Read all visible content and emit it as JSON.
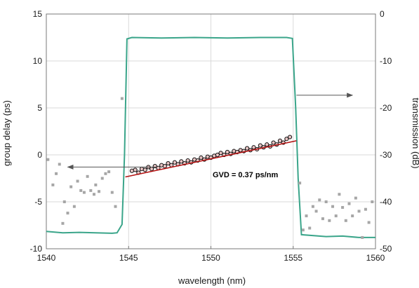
{
  "chart_data": {
    "type": "scatter",
    "title": "",
    "xlabel": "wavelength (nm)",
    "ylabel_left": "group delay (ps)",
    "ylabel_right": "transmission (dB)",
    "xlim": [
      1540,
      1560
    ],
    "ylim_left": [
      -10,
      15
    ],
    "ylim_right": [
      -50,
      0
    ],
    "x_ticks": [
      "1540",
      "1545",
      "1550",
      "1555",
      "1560"
    ],
    "y_left_ticks": [
      "-10",
      "-5",
      "0",
      "5",
      "10",
      "15"
    ],
    "y_right_ticks": [
      "-50",
      "-40",
      "-30",
      "-20",
      "-10",
      "0"
    ],
    "grid": true,
    "annotation": "GVD = 0.37 ps/nm",
    "colors": {
      "transmission": "#3aa58a",
      "fit": "#b31212",
      "measured_in_band": "#111111",
      "measured_out_of_band": "#a6a6a6",
      "arrow": "#555555"
    },
    "series": [
      {
        "kind": "transmission_line",
        "axis": "right",
        "x": [
          1540.0,
          1541.0,
          1542.0,
          1543.0,
          1544.0,
          1544.3,
          1544.6,
          1544.75,
          1544.9,
          1545.2,
          1547.0,
          1549.0,
          1551.0,
          1553.0,
          1554.6,
          1554.95,
          1555.15,
          1555.3,
          1555.5,
          1557.0,
          1558.0,
          1559.0,
          1560.0
        ],
        "y": [
          -46.3,
          -46.6,
          -46.5,
          -46.6,
          -46.7,
          -46.6,
          -44.8,
          -30.0,
          -5.3,
          -5.0,
          -5.1,
          -5.0,
          -5.1,
          -5.0,
          -5.0,
          -5.2,
          -20.0,
          -35.0,
          -47.0,
          -47.4,
          -47.3,
          -47.6,
          -47.6
        ]
      },
      {
        "kind": "measured_in_band",
        "axis": "left",
        "x": [
          1545.2,
          1545.4,
          1545.6,
          1545.8,
          1546.0,
          1546.2,
          1546.4,
          1546.6,
          1546.8,
          1547.0,
          1547.2,
          1547.4,
          1547.6,
          1547.8,
          1548.0,
          1548.2,
          1548.4,
          1548.6,
          1548.8,
          1549.0,
          1549.2,
          1549.4,
          1549.6,
          1549.8,
          1550.0,
          1550.2,
          1550.4,
          1550.6,
          1550.8,
          1551.0,
          1551.2,
          1551.4,
          1551.6,
          1551.8,
          1552.0,
          1552.2,
          1552.4,
          1552.6,
          1552.8,
          1553.0,
          1553.2,
          1553.4,
          1553.6,
          1553.8,
          1554.0,
          1554.2,
          1554.4,
          1554.6,
          1554.8
        ],
        "y": [
          -1.7,
          -1.6,
          -1.9,
          -1.5,
          -1.6,
          -1.3,
          -1.5,
          -1.2,
          -1.4,
          -1.1,
          -1.2,
          -0.9,
          -1.1,
          -0.8,
          -1.0,
          -0.7,
          -0.9,
          -0.6,
          -0.8,
          -0.5,
          -0.6,
          -0.3,
          -0.5,
          -0.2,
          -0.3,
          -0.1,
          0.0,
          0.2,
          0.0,
          0.3,
          0.1,
          0.4,
          0.3,
          0.5,
          0.4,
          0.7,
          0.5,
          0.8,
          0.6,
          1.0,
          0.8,
          1.1,
          0.9,
          1.3,
          1.1,
          1.5,
          1.3,
          1.7,
          1.9
        ]
      },
      {
        "kind": "measured_out_of_band",
        "axis": "left",
        "x": [
          1540.1,
          1540.4,
          1540.6,
          1540.8,
          1541.0,
          1541.1,
          1541.3,
          1541.5,
          1541.7,
          1541.9,
          1542.1,
          1542.3,
          1542.5,
          1542.7,
          1542.9,
          1543.0,
          1543.2,
          1543.4,
          1543.6,
          1543.8,
          1544.0,
          1544.2,
          1544.6,
          1555.4,
          1555.6,
          1555.8,
          1556.0,
          1556.2,
          1556.4,
          1556.6,
          1556.8,
          1557.0,
          1557.2,
          1557.4,
          1557.6,
          1557.8,
          1558.0,
          1558.2,
          1558.4,
          1558.6,
          1558.8,
          1559.0,
          1559.2,
          1559.4,
          1559.6,
          1559.8
        ],
        "y": [
          -0.5,
          -3.2,
          -2.0,
          -1.0,
          -7.3,
          -5.0,
          -6.2,
          -3.4,
          -5.5,
          -2.8,
          -3.8,
          -4.0,
          -2.3,
          -3.8,
          -4.2,
          -3.2,
          -3.9,
          -2.5,
          -2.0,
          -1.8,
          -4.0,
          -5.5,
          6.0,
          -3.0,
          -8.0,
          -6.5,
          -7.8,
          -5.5,
          -6.0,
          -4.8,
          -6.8,
          -5.0,
          -7.0,
          -5.5,
          -6.5,
          -4.2,
          -5.6,
          -7.0,
          -5.2,
          -6.5,
          -4.6,
          -6.0,
          -8.8,
          -5.8,
          -7.2,
          -5.0
        ]
      },
      {
        "kind": "linear_fit",
        "axis": "left",
        "x": [
          1544.8,
          1555.2
        ],
        "y": [
          -2.35,
          1.5
        ]
      }
    ],
    "arrows": [
      {
        "points_to": "left_axis",
        "from_x": 1546.7,
        "to_x": 1541.3,
        "y_left": -1.3
      },
      {
        "points_to": "right_axis",
        "from_x": 1555.2,
        "to_x": 1558.6,
        "y_right": -17.3
      }
    ]
  }
}
